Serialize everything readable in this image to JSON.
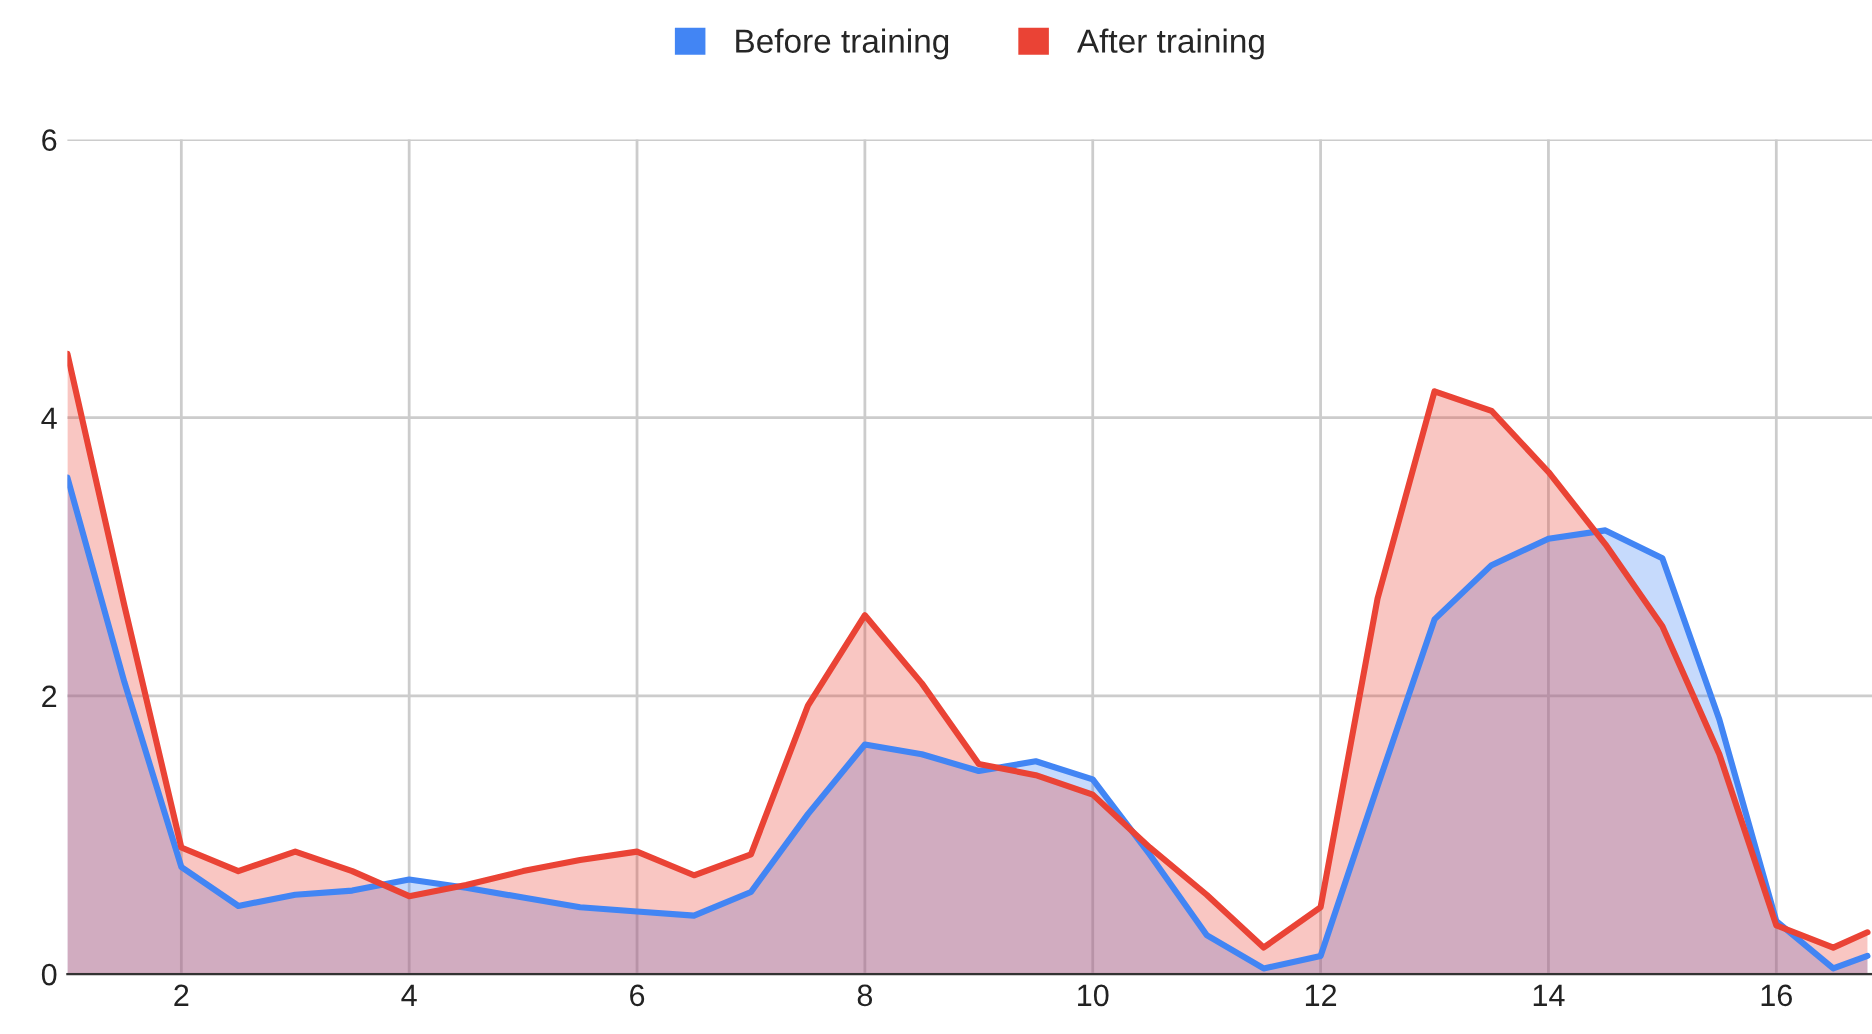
{
  "chart_data": {
    "type": "area",
    "x": [
      1,
      1.5,
      2,
      2.5,
      3,
      3.5,
      4,
      4.5,
      5,
      5.5,
      6,
      6.5,
      7,
      7.5,
      8,
      8.5,
      9,
      9.5,
      10,
      10.5,
      11,
      11.5,
      12,
      12.5,
      13,
      13.5,
      14,
      14.5,
      15,
      15.5,
      16,
      16.5,
      16.8
    ],
    "series": [
      {
        "name": "Before training",
        "color": "#4285f4",
        "values": [
          3.57,
          2.1,
          0.77,
          0.49,
          0.57,
          0.6,
          0.68,
          0.62,
          0.55,
          0.48,
          0.45,
          0.42,
          0.59,
          1.15,
          1.65,
          1.58,
          1.46,
          1.53,
          1.4,
          0.86,
          0.28,
          0.04,
          0.13,
          1.35,
          2.55,
          2.94,
          3.13,
          3.19,
          2.99,
          1.83,
          0.38,
          0.04,
          0.13
        ]
      },
      {
        "name": "After training",
        "color": "#ea4335",
        "values": [
          4.46,
          2.65,
          0.91,
          0.74,
          0.88,
          0.74,
          0.56,
          0.64,
          0.74,
          0.82,
          0.88,
          0.71,
          0.86,
          1.93,
          2.58,
          2.09,
          1.51,
          1.43,
          1.29,
          0.91,
          0.57,
          0.19,
          0.48,
          2.7,
          4.19,
          4.05,
          3.61,
          3.09,
          2.5,
          1.58,
          0.35,
          0.19,
          0.3
        ]
      }
    ],
    "xlim": [
      1,
      16.84
    ],
    "xticks": [
      2,
      4,
      6,
      8,
      10,
      12,
      14,
      16
    ],
    "ylim": [
      0,
      6
    ],
    "yticks": [
      0,
      2,
      4,
      6
    ],
    "grid": true,
    "legend": "top",
    "line_style": "solid"
  }
}
